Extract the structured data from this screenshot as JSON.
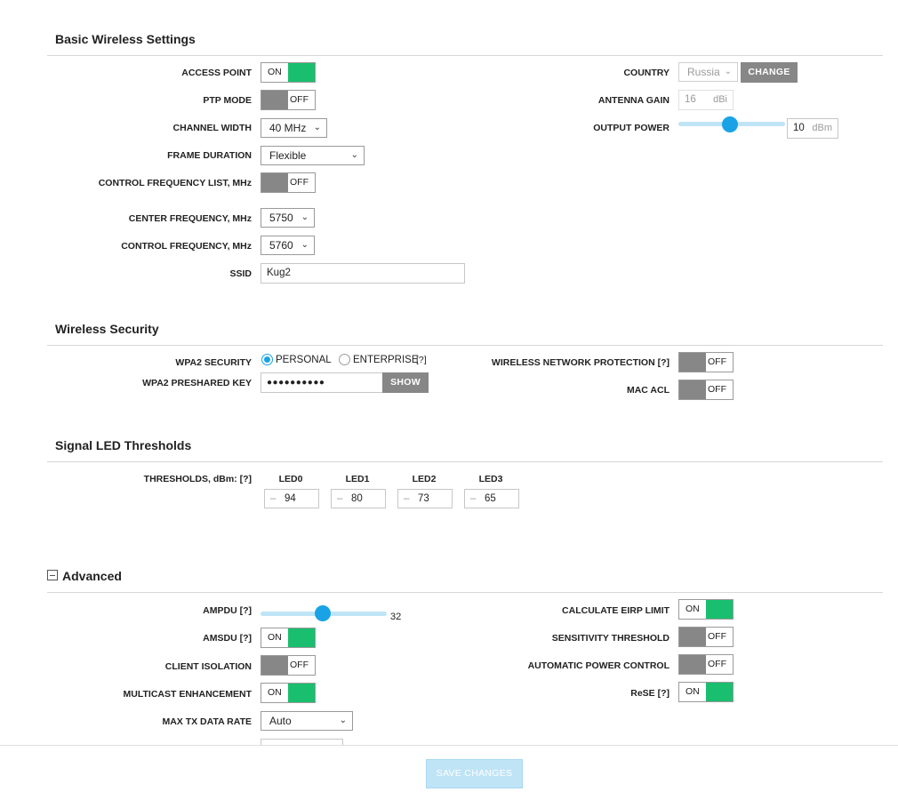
{
  "basic": {
    "title": "Basic Wireless Settings",
    "access_point": {
      "label": "ACCESS POINT",
      "state": "ON"
    },
    "ptp_mode": {
      "label": "PTP MODE",
      "state": "OFF"
    },
    "channel_width": {
      "label": "CHANNEL WIDTH",
      "value": "40 MHz"
    },
    "frame_duration": {
      "label": "FRAME DURATION",
      "value": "Flexible"
    },
    "control_freq_list": {
      "label": "CONTROL FREQUENCY LIST, MHz",
      "state": "OFF"
    },
    "center_freq": {
      "label": "CENTER FREQUENCY, MHz",
      "value": "5750"
    },
    "control_freq": {
      "label": "CONTROL FREQUENCY, MHz",
      "value": "5760"
    },
    "ssid": {
      "label": "SSID",
      "value": "Kug2"
    },
    "country": {
      "label": "COUNTRY",
      "value": "Russia",
      "button": "CHANGE"
    },
    "antenna_gain": {
      "label": "ANTENNA GAIN",
      "value": "16",
      "unit": "dBi"
    },
    "output_power": {
      "label": "OUTPUT POWER",
      "value": "10",
      "unit": "dBm",
      "slider_fraction": 0.48
    }
  },
  "security": {
    "title": "Wireless Security",
    "wpa2_security": {
      "label": "WPA2 SECURITY",
      "options": [
        "PERSONAL",
        "ENTERPRISE"
      ],
      "selected": "PERSONAL",
      "help": "[?]"
    },
    "psk": {
      "label": "WPA2 PRESHARED KEY",
      "value": "●●●●●●●●●●",
      "button": "SHOW"
    },
    "wnp": {
      "label": "WIRELESS NETWORK PROTECTION [?]",
      "state": "OFF"
    },
    "mac_acl": {
      "label": "MAC ACL",
      "state": "OFF"
    }
  },
  "led": {
    "title": "Signal LED Thresholds",
    "label": "THRESHOLDS, dBm: [?]",
    "minus": "–",
    "items": [
      {
        "name": "LED0",
        "value": "94"
      },
      {
        "name": "LED1",
        "value": "80"
      },
      {
        "name": "LED2",
        "value": "73"
      },
      {
        "name": "LED3",
        "value": "65"
      }
    ]
  },
  "advanced": {
    "title": "Advanced",
    "ampdu": {
      "label": "AMPDU [?]",
      "value": "32",
      "slider_fraction": 0.49
    },
    "amsdu": {
      "label": "AMSDU [?]",
      "state": "ON"
    },
    "client_isolation": {
      "label": "CLIENT ISOLATION",
      "state": "OFF"
    },
    "multicast": {
      "label": "MULTICAST ENHANCEMENT",
      "state": "ON"
    },
    "max_tx": {
      "label": "MAX TX DATA RATE",
      "value": "Auto"
    },
    "eirp": {
      "label": "CALCULATE EIRP LIMIT",
      "state": "ON"
    },
    "sensitivity": {
      "label": "SENSITIVITY THRESHOLD",
      "state": "OFF"
    },
    "apc": {
      "label": "AUTOMATIC POWER CONTROL",
      "state": "OFF"
    },
    "rese": {
      "label": "ReSE [?]",
      "state": "ON"
    }
  },
  "footer": {
    "save_label": "SAVE CHANGES"
  },
  "colors": {
    "on_green": "#19bf6e",
    "off_gray": "#878787",
    "slider_blue": "#19a3e6"
  }
}
